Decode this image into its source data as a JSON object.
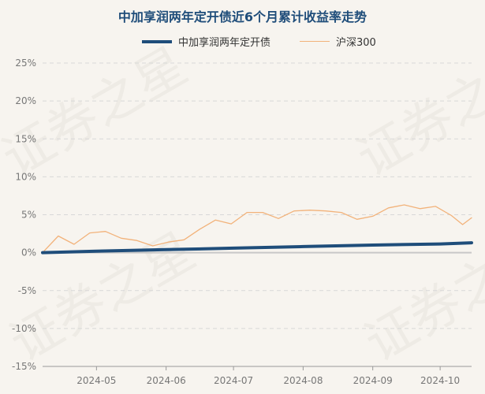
{
  "watermark_text": "证券之星",
  "chart_data": {
    "type": "line",
    "title": "中加享润两年定开债近6个月累计收益率走势",
    "xlabel": "",
    "ylabel": "",
    "ylim": [
      -15,
      25
    ],
    "y_ticks": [
      "25%",
      "20%",
      "15%",
      "10%",
      "5%",
      "0%",
      "-5%",
      "-10%",
      "-15%"
    ],
    "y_tick_values": [
      25,
      20,
      15,
      10,
      5,
      0,
      -5,
      -10,
      -15
    ],
    "x_range": [
      "2024-04-07",
      "2024-10-15"
    ],
    "x_ticks": [
      {
        "label": "2024-05",
        "date": "2024-05-01"
      },
      {
        "label": "2024-06",
        "date": "2024-06-01"
      },
      {
        "label": "2024-07",
        "date": "2024-07-01"
      },
      {
        "label": "2024-08",
        "date": "2024-08-01"
      },
      {
        "label": "2024-09",
        "date": "2024-09-01"
      },
      {
        "label": "2024-10",
        "date": "2024-10-01"
      }
    ],
    "grid": true,
    "legend_position": "top-center",
    "series": [
      {
        "name": "中加享润两年定开债",
        "color": "#1f4d7a",
        "points": [
          {
            "x": "2024-04-07",
            "y": 0.0
          },
          {
            "x": "2024-05-01",
            "y": 0.2
          },
          {
            "x": "2024-06-01",
            "y": 0.4
          },
          {
            "x": "2024-07-01",
            "y": 0.6
          },
          {
            "x": "2024-08-01",
            "y": 0.8
          },
          {
            "x": "2024-09-01",
            "y": 1.0
          },
          {
            "x": "2024-10-01",
            "y": 1.15
          },
          {
            "x": "2024-10-15",
            "y": 1.3
          }
        ]
      },
      {
        "name": "沪深300",
        "color": "#f2b27a",
        "points": [
          {
            "x": "2024-04-07",
            "y": 0.0
          },
          {
            "x": "2024-04-14",
            "y": 2.2
          },
          {
            "x": "2024-04-21",
            "y": 1.1
          },
          {
            "x": "2024-04-28",
            "y": 2.6
          },
          {
            "x": "2024-05-05",
            "y": 2.8
          },
          {
            "x": "2024-05-12",
            "y": 1.9
          },
          {
            "x": "2024-05-19",
            "y": 1.6
          },
          {
            "x": "2024-05-26",
            "y": 0.9
          },
          {
            "x": "2024-06-02",
            "y": 1.4
          },
          {
            "x": "2024-06-09",
            "y": 1.7
          },
          {
            "x": "2024-06-16",
            "y": 3.1
          },
          {
            "x": "2024-06-23",
            "y": 4.3
          },
          {
            "x": "2024-06-30",
            "y": 3.8
          },
          {
            "x": "2024-07-07",
            "y": 5.3
          },
          {
            "x": "2024-07-14",
            "y": 5.3
          },
          {
            "x": "2024-07-21",
            "y": 4.5
          },
          {
            "x": "2024-07-28",
            "y": 5.5
          },
          {
            "x": "2024-08-04",
            "y": 5.6
          },
          {
            "x": "2024-08-11",
            "y": 5.5
          },
          {
            "x": "2024-08-18",
            "y": 5.3
          },
          {
            "x": "2024-08-25",
            "y": 4.4
          },
          {
            "x": "2024-09-01",
            "y": 4.8
          },
          {
            "x": "2024-09-08",
            "y": 5.9
          },
          {
            "x": "2024-09-15",
            "y": 6.3
          },
          {
            "x": "2024-09-22",
            "y": 5.8
          },
          {
            "x": "2024-09-29",
            "y": 6.1
          },
          {
            "x": "2024-10-06",
            "y": 4.9
          },
          {
            "x": "2024-10-11",
            "y": 3.7
          },
          {
            "x": "2024-10-15",
            "y": 4.6
          }
        ]
      }
    ]
  }
}
